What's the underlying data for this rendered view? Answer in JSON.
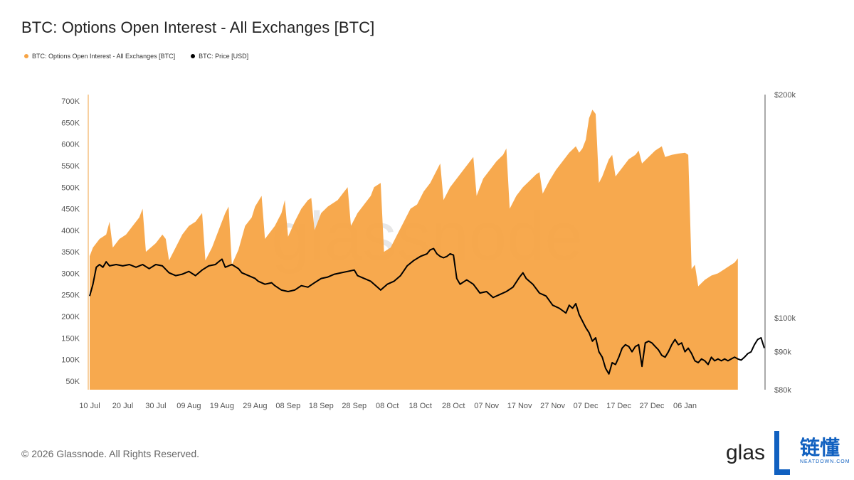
{
  "title": "BTC: Options Open Interest - All Exchanges [BTC]",
  "legend": [
    {
      "label": "BTC: Options Open Interest - All Exchanges [BTC]",
      "color": "#f7a445"
    },
    {
      "label": "BTC: Price [USD]",
      "color": "#000000"
    }
  ],
  "footer": "© 2026 Glassnode. All Rights Reserved.",
  "watermark": "glassnode",
  "logo": {
    "text": "glas",
    "cn": "链懂",
    "sub": "NEATDOWN.COM"
  },
  "colors": {
    "area": "#f7a445",
    "price": "#000000",
    "accent": "#f0a040"
  },
  "chart_data": {
    "type": "area",
    "x_tick_labels": [
      "10 Jul",
      "20 Jul",
      "30 Jul",
      "09 Aug",
      "19 Aug",
      "29 Aug",
      "08 Sep",
      "18 Sep",
      "28 Sep",
      "08 Oct",
      "18 Oct",
      "28 Oct",
      "07 Nov",
      "17 Nov",
      "27 Nov",
      "07 Dec",
      "17 Dec",
      "27 Dec",
      "06 Jan"
    ],
    "x_range_days": [
      0,
      181
    ],
    "left_axis": {
      "ticks": [
        "700K",
        "650K",
        "600K",
        "550K",
        "500K",
        "450K",
        "400K",
        "350K",
        "300K",
        "250K",
        "200K",
        "150K",
        "100K",
        "50K"
      ],
      "ylim": [
        30000,
        715000
      ]
    },
    "right_axis": {
      "scale": "log",
      "ticks": [
        {
          "label": "$200k",
          "value": 200000
        },
        {
          "label": "$100k",
          "value": 100000
        },
        {
          "label": "$90k",
          "value": 90000
        },
        {
          "label": "$80k",
          "value": 80000
        }
      ],
      "ylim": [
        80000,
        200000
      ]
    },
    "series": [
      {
        "name": "BTC: Options Open Interest - All Exchanges [BTC]",
        "axis": "left",
        "points": [
          [
            0,
            340000
          ],
          [
            1,
            360000
          ],
          [
            3,
            380000
          ],
          [
            5,
            390000
          ],
          [
            6,
            420000
          ],
          [
            7,
            360000
          ],
          [
            9,
            380000
          ],
          [
            11,
            390000
          ],
          [
            13,
            410000
          ],
          [
            15,
            430000
          ],
          [
            16,
            450000
          ],
          [
            17,
            350000
          ],
          [
            20,
            370000
          ],
          [
            22,
            390000
          ],
          [
            23,
            380000
          ],
          [
            24,
            330000
          ],
          [
            26,
            360000
          ],
          [
            28,
            390000
          ],
          [
            30,
            410000
          ],
          [
            32,
            420000
          ],
          [
            34,
            440000
          ],
          [
            35,
            330000
          ],
          [
            37,
            360000
          ],
          [
            39,
            400000
          ],
          [
            41,
            440000
          ],
          [
            42,
            455000
          ],
          [
            43,
            320000
          ],
          [
            45,
            355000
          ],
          [
            47,
            410000
          ],
          [
            49,
            430000
          ],
          [
            50,
            455000
          ],
          [
            52,
            480000
          ],
          [
            53,
            380000
          ],
          [
            56,
            410000
          ],
          [
            58,
            440000
          ],
          [
            59,
            470000
          ],
          [
            60,
            385000
          ],
          [
            62,
            420000
          ],
          [
            64,
            450000
          ],
          [
            66,
            470000
          ],
          [
            67,
            475000
          ],
          [
            68,
            400000
          ],
          [
            70,
            440000
          ],
          [
            72,
            455000
          ],
          [
            75,
            470000
          ],
          [
            77,
            490000
          ],
          [
            78,
            500000
          ],
          [
            79,
            410000
          ],
          [
            81,
            440000
          ],
          [
            83,
            460000
          ],
          [
            85,
            480000
          ],
          [
            86,
            500000
          ],
          [
            88,
            510000
          ],
          [
            89,
            350000
          ],
          [
            91,
            360000
          ],
          [
            93,
            390000
          ],
          [
            95,
            420000
          ],
          [
            97,
            450000
          ],
          [
            99,
            460000
          ],
          [
            101,
            490000
          ],
          [
            103,
            510000
          ],
          [
            105,
            540000
          ],
          [
            106,
            555000
          ],
          [
            107,
            470000
          ],
          [
            109,
            500000
          ],
          [
            111,
            520000
          ],
          [
            113,
            540000
          ],
          [
            115,
            560000
          ],
          [
            116,
            570000
          ],
          [
            117,
            480000
          ],
          [
            119,
            520000
          ],
          [
            121,
            540000
          ],
          [
            123,
            560000
          ],
          [
            125,
            575000
          ],
          [
            126,
            590000
          ],
          [
            127,
            450000
          ],
          [
            129,
            480000
          ],
          [
            131,
            500000
          ],
          [
            133,
            515000
          ],
          [
            135,
            530000
          ],
          [
            136,
            535000
          ],
          [
            137,
            485000
          ],
          [
            139,
            515000
          ],
          [
            141,
            540000
          ],
          [
            143,
            560000
          ],
          [
            145,
            580000
          ],
          [
            147,
            595000
          ],
          [
            148,
            580000
          ],
          [
            149,
            590000
          ],
          [
            150,
            610000
          ],
          [
            151,
            660000
          ],
          [
            152,
            680000
          ],
          [
            153,
            670000
          ],
          [
            154,
            510000
          ],
          [
            155,
            525000
          ],
          [
            156,
            545000
          ],
          [
            157,
            565000
          ],
          [
            158,
            575000
          ],
          [
            159,
            525000
          ],
          [
            161,
            545000
          ],
          [
            163,
            565000
          ],
          [
            165,
            575000
          ],
          [
            166,
            585000
          ],
          [
            167,
            555000
          ],
          [
            169,
            570000
          ],
          [
            171,
            585000
          ],
          [
            173,
            595000
          ],
          [
            174,
            570000
          ],
          [
            176,
            575000
          ],
          [
            178,
            578000
          ],
          [
            180,
            580000
          ],
          [
            181,
            575000
          ],
          [
            182,
            310000
          ],
          [
            183,
            320000
          ],
          [
            184,
            270000
          ],
          [
            186,
            285000
          ],
          [
            188,
            295000
          ],
          [
            190,
            300000
          ],
          [
            192,
            310000
          ],
          [
            193,
            315000
          ],
          [
            195,
            325000
          ],
          [
            196,
            335000
          ]
        ]
      },
      {
        "name": "BTC: Price [USD]",
        "axis": "right",
        "points": [
          [
            0,
            107000
          ],
          [
            1,
            111000
          ],
          [
            2,
            117000
          ],
          [
            3,
            118000
          ],
          [
            4,
            117000
          ],
          [
            5,
            119000
          ],
          [
            6,
            117500
          ],
          [
            8,
            118000
          ],
          [
            10,
            117500
          ],
          [
            12,
            118000
          ],
          [
            14,
            117000
          ],
          [
            16,
            118000
          ],
          [
            18,
            116500
          ],
          [
            20,
            118000
          ],
          [
            22,
            117500
          ],
          [
            24,
            115000
          ],
          [
            26,
            114000
          ],
          [
            28,
            114500
          ],
          [
            30,
            115500
          ],
          [
            32,
            114000
          ],
          [
            34,
            116000
          ],
          [
            36,
            117500
          ],
          [
            38,
            118000
          ],
          [
            39,
            119000
          ],
          [
            40,
            120000
          ],
          [
            41,
            117000
          ],
          [
            43,
            118000
          ],
          [
            45,
            116500
          ],
          [
            46,
            115000
          ],
          [
            48,
            114000
          ],
          [
            50,
            113000
          ],
          [
            51,
            112000
          ],
          [
            53,
            111000
          ],
          [
            55,
            111500
          ],
          [
            56,
            110500
          ],
          [
            58,
            109000
          ],
          [
            60,
            108500
          ],
          [
            62,
            109000
          ],
          [
            64,
            110500
          ],
          [
            66,
            110000
          ],
          [
            68,
            111500
          ],
          [
            70,
            113000
          ],
          [
            72,
            113500
          ],
          [
            74,
            114500
          ],
          [
            76,
            115000
          ],
          [
            78,
            115500
          ],
          [
            80,
            116000
          ],
          [
            81,
            114000
          ],
          [
            83,
            113000
          ],
          [
            85,
            112000
          ],
          [
            87,
            110000
          ],
          [
            88,
            109000
          ],
          [
            90,
            111000
          ],
          [
            92,
            112000
          ],
          [
            94,
            114000
          ],
          [
            96,
            117500
          ],
          [
            98,
            119500
          ],
          [
            100,
            121000
          ],
          [
            102,
            122000
          ],
          [
            103,
            123500
          ],
          [
            104,
            124000
          ],
          [
            105,
            122000
          ],
          [
            106,
            121000
          ],
          [
            107,
            120500
          ],
          [
            108,
            121000
          ],
          [
            109,
            122000
          ],
          [
            110,
            121500
          ],
          [
            111,
            113000
          ],
          [
            112,
            111000
          ],
          [
            114,
            112500
          ],
          [
            116,
            111000
          ],
          [
            118,
            108000
          ],
          [
            120,
            108500
          ],
          [
            121,
            107500
          ],
          [
            122,
            106500
          ],
          [
            124,
            107500
          ],
          [
            126,
            108500
          ],
          [
            128,
            110000
          ],
          [
            130,
            113500
          ],
          [
            131,
            115000
          ],
          [
            132,
            113000
          ],
          [
            134,
            111000
          ],
          [
            136,
            108000
          ],
          [
            138,
            107000
          ],
          [
            140,
            104000
          ],
          [
            142,
            103000
          ],
          [
            144,
            101500
          ],
          [
            145,
            104000
          ],
          [
            146,
            103000
          ],
          [
            147,
            104500
          ],
          [
            148,
            101000
          ],
          [
            150,
            97000
          ],
          [
            151,
            95500
          ],
          [
            152,
            93000
          ],
          [
            153,
            94000
          ],
          [
            154,
            90000
          ],
          [
            155,
            88500
          ],
          [
            156,
            85500
          ],
          [
            157,
            84000
          ],
          [
            158,
            87000
          ],
          [
            159,
            86500
          ],
          [
            160,
            88500
          ],
          [
            161,
            91000
          ],
          [
            162,
            92000
          ],
          [
            163,
            91500
          ],
          [
            164,
            90000
          ],
          [
            165,
            91500
          ],
          [
            166,
            92000
          ],
          [
            167,
            86000
          ],
          [
            168,
            92500
          ],
          [
            169,
            93000
          ],
          [
            170,
            92500
          ],
          [
            171,
            91500
          ],
          [
            172,
            90500
          ],
          [
            173,
            89000
          ],
          [
            174,
            88500
          ],
          [
            175,
            90000
          ],
          [
            176,
            92000
          ],
          [
            177,
            93500
          ],
          [
            178,
            92000
          ],
          [
            179,
            92500
          ],
          [
            180,
            90000
          ],
          [
            181,
            91000
          ],
          [
            182,
            89500
          ],
          [
            183,
            87500
          ],
          [
            184,
            87000
          ],
          [
            185,
            88000
          ],
          [
            186,
            87500
          ],
          [
            187,
            86500
          ],
          [
            188,
            88500
          ],
          [
            189,
            87500
          ],
          [
            190,
            88000
          ],
          [
            191,
            87500
          ],
          [
            192,
            88000
          ],
          [
            193,
            87500
          ],
          [
            194,
            88000
          ],
          [
            195,
            88500
          ],
          [
            196,
            88000
          ],
          [
            197,
            87700
          ],
          [
            198,
            88500
          ],
          [
            199,
            89500
          ],
          [
            200,
            90000
          ],
          [
            201,
            92000
          ],
          [
            202,
            93500
          ],
          [
            203,
            94000
          ],
          [
            204,
            91000
          ]
        ]
      }
    ],
    "x_domain": [
      0,
      204
    ],
    "grid": false,
    "legend_position": "top-left"
  }
}
